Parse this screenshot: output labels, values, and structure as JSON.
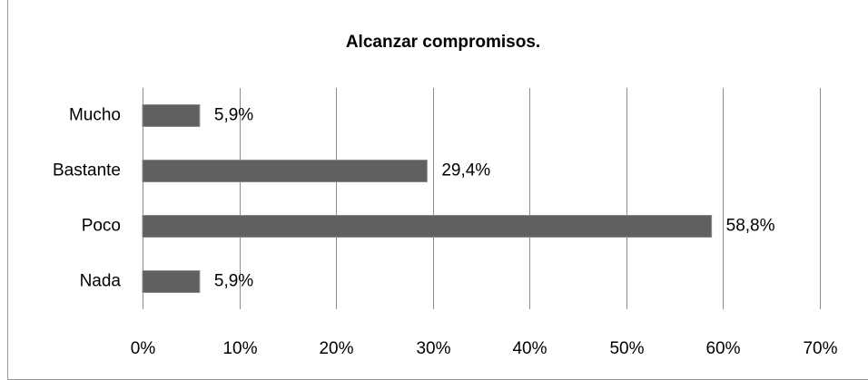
{
  "chart_data": {
    "type": "bar",
    "orientation": "horizontal",
    "title": "Alcanzar compromisos.",
    "categories": [
      "Mucho",
      "Bastante",
      "Poco",
      "Nada"
    ],
    "values": [
      5.9,
      29.4,
      58.8,
      5.9
    ],
    "value_labels": [
      "5,9%",
      "29,4%",
      "58,8%",
      "5,9%"
    ],
    "color": "#606060",
    "xlim": [
      0,
      70
    ],
    "xticks": [
      {
        "value": 0,
        "label": "0%"
      },
      {
        "value": 10,
        "label": "10%"
      },
      {
        "value": 20,
        "label": "20%"
      },
      {
        "value": 30,
        "label": "30%"
      },
      {
        "value": 40,
        "label": "40%"
      },
      {
        "value": 50,
        "label": "50%"
      },
      {
        "value": 60,
        "label": "60%"
      },
      {
        "value": 70,
        "label": "70%"
      }
    ],
    "grid": true
  }
}
